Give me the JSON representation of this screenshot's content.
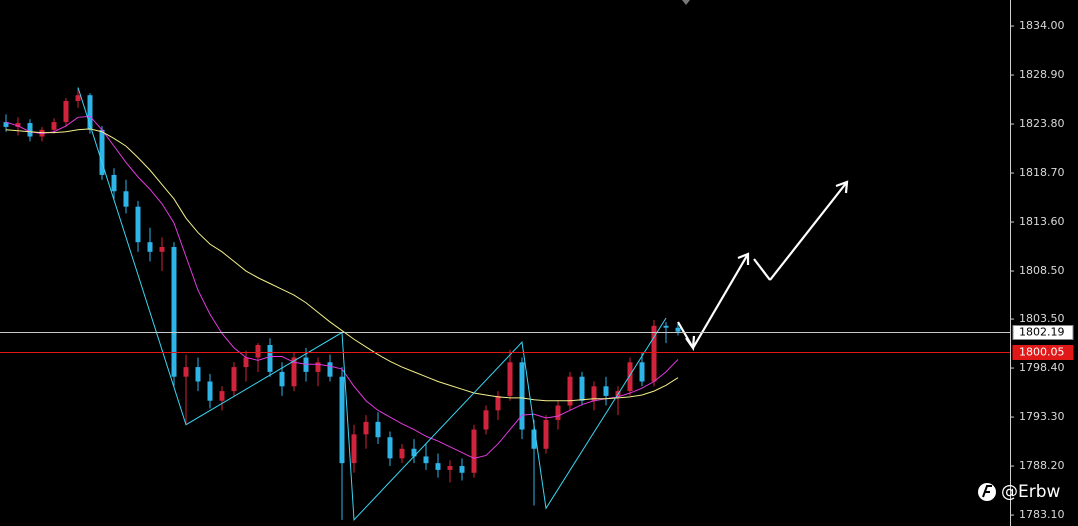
{
  "chart_data": {
    "type": "candlestick",
    "open": [
      1824.0,
      1823.5,
      1823.9,
      1822.5,
      1823.2,
      1824.0,
      1826.2,
      1826.8,
      1823.2,
      1818.5,
      1816.8,
      1815.2,
      1811.5,
      1810.5,
      1811.0,
      1797.5,
      1798.5,
      1797.0,
      1795.0,
      1796.0,
      1798.5,
      1799.5,
      1800.8,
      1798.0,
      1796.5,
      1799.5,
      1798.0,
      1799.0,
      1797.5,
      1788.5,
      1791.5,
      1792.8,
      1791.2,
      1789.0,
      1790.0,
      1789.2,
      1788.5,
      1787.8,
      1788.2,
      1787.5,
      1792.0,
      1794.0,
      1795.5,
      1799.0,
      1792.0,
      1790.0,
      1793.0,
      1794.5,
      1797.5,
      1795.0,
      1796.5,
      1795.5,
      1796.0,
      1799.0,
      1797.0,
      1802.8,
      1802.6
    ],
    "high": [
      1824.8,
      1824.5,
      1824.3,
      1823.5,
      1824.4,
      1826.5,
      1827.6,
      1827.0,
      1823.6,
      1819.2,
      1818.0,
      1815.8,
      1813.0,
      1812.0,
      1811.5,
      1799.8,
      1799.5,
      1797.8,
      1796.5,
      1799.0,
      1800.2,
      1801.0,
      1801.5,
      1799.0,
      1800.0,
      1800.5,
      1799.5,
      1799.8,
      1798.5,
      1792.5,
      1793.5,
      1793.8,
      1791.8,
      1790.5,
      1791.0,
      1790.5,
      1789.5,
      1788.8,
      1789.0,
      1792.5,
      1794.5,
      1796.0,
      1800.3,
      1799.5,
      1793.0,
      1793.5,
      1795.0,
      1798.0,
      1798.0,
      1797.0,
      1797.5,
      1796.5,
      1799.5,
      1800.0,
      1803.4,
      1803.2,
      1803.0
    ],
    "low": [
      1823.0,
      1822.6,
      1822.0,
      1822.0,
      1822.8,
      1823.5,
      1825.5,
      1822.8,
      1818.0,
      1816.0,
      1814.5,
      1810.5,
      1809.5,
      1808.5,
      1796.5,
      1792.5,
      1796.0,
      1794.2,
      1794.0,
      1795.5,
      1797.0,
      1798.0,
      1797.5,
      1795.5,
      1796.0,
      1797.0,
      1796.5,
      1797.0,
      1782.6,
      1787.5,
      1790.0,
      1790.5,
      1788.2,
      1788.5,
      1788.5,
      1787.8,
      1787.0,
      1786.5,
      1786.7,
      1787.0,
      1791.5,
      1793.0,
      1795.0,
      1791.0,
      1784.1,
      1789.5,
      1792.0,
      1794.0,
      1794.5,
      1794.0,
      1794.5,
      1793.5,
      1795.5,
      1796.5,
      1796.5,
      1801.0,
      1801.8
    ],
    "close": [
      1823.5,
      1823.9,
      1822.5,
      1823.2,
      1824.0,
      1826.2,
      1826.8,
      1823.2,
      1818.5,
      1816.8,
      1815.2,
      1811.5,
      1810.5,
      1811.0,
      1797.5,
      1798.5,
      1797.0,
      1795.0,
      1796.0,
      1798.5,
      1799.5,
      1800.8,
      1798.0,
      1796.5,
      1799.5,
      1798.0,
      1799.0,
      1797.5,
      1788.5,
      1791.5,
      1792.8,
      1791.2,
      1789.0,
      1790.0,
      1789.2,
      1788.5,
      1787.8,
      1788.2,
      1787.5,
      1792.0,
      1794.0,
      1795.5,
      1799.0,
      1792.0,
      1790.0,
      1793.0,
      1794.5,
      1797.5,
      1795.0,
      1796.5,
      1795.5,
      1796.0,
      1799.0,
      1797.0,
      1802.8,
      1802.6,
      1802.19
    ],
    "up_color": "#d0243c",
    "down_color": "#2fb4e8",
    "lines": [
      {
        "color": "#e23ae0",
        "values": [
          1824.0,
          1823.6,
          1823.0,
          1822.8,
          1823.0,
          1823.6,
          1824.5,
          1824.6,
          1823.2,
          1821.5,
          1819.8,
          1818.3,
          1817.0,
          1815.5,
          1813.5,
          1810.0,
          1806.5,
          1804.0,
          1802.0,
          1800.5,
          1799.5,
          1799.2,
          1799.6,
          1799.6,
          1799.0,
          1798.8,
          1798.8,
          1798.6,
          1798.3,
          1796.5,
          1795.0,
          1794.0,
          1793.3,
          1792.6,
          1792.0,
          1791.3,
          1790.8,
          1790.2,
          1789.6,
          1789.0,
          1789.3,
          1790.5,
          1792.0,
          1793.5,
          1793.6,
          1793.2,
          1793.4,
          1794.0,
          1794.6,
          1795.0,
          1795.2,
          1795.4,
          1795.8,
          1796.3,
          1797.0,
          1798.0,
          1799.3
        ]
      },
      {
        "color": "#f2ef8a",
        "values": [
          1823.2,
          1823.1,
          1823.0,
          1822.9,
          1822.9,
          1823.0,
          1823.2,
          1823.3,
          1823.0,
          1822.3,
          1821.5,
          1820.3,
          1819.0,
          1817.5,
          1816.0,
          1814.0,
          1812.5,
          1811.3,
          1810.5,
          1809.5,
          1808.5,
          1807.8,
          1807.2,
          1806.6,
          1806.0,
          1805.2,
          1804.2,
          1803.2,
          1802.3,
          1801.4,
          1800.6,
          1799.8,
          1799.1,
          1798.5,
          1798.0,
          1797.5,
          1797.0,
          1796.6,
          1796.2,
          1795.8,
          1795.6,
          1795.4,
          1795.3,
          1795.3,
          1795.1,
          1795.0,
          1795.0,
          1795.0,
          1795.1,
          1795.2,
          1795.2,
          1795.3,
          1795.4,
          1795.6,
          1796.0,
          1796.6,
          1797.4
        ]
      }
    ],
    "zigzag": {
      "color": "#3ad4f2",
      "x": [
        6,
        15,
        28,
        29,
        43,
        45,
        55
      ],
      "values": [
        1827.6,
        1792.5,
        1802.1,
        1782.6,
        1801.1,
        1783.8,
        1803.6
      ]
    },
    "price_lines": [
      {
        "value": 1802.19,
        "color": "#c8c8c8"
      },
      {
        "value": 1800.05,
        "color": "#e01818"
      }
    ],
    "ylim": [
      1781.96,
      1836.71
    ],
    "yticks": [
      {
        "value": 1834,
        "label": "1834.00"
      },
      {
        "value": 1828.9,
        "label": "1828.90"
      },
      {
        "value": 1823.8,
        "label": "1823.80"
      },
      {
        "value": 1818.7,
        "label": "1818.70"
      },
      {
        "value": 1813.6,
        "label": "1813.60"
      },
      {
        "value": 1808.5,
        "label": "1808.50"
      },
      {
        "value": 1803.5,
        "label": "1803.50"
      },
      {
        "value": 1798.4,
        "label": "1798.40"
      },
      {
        "value": 1793.3,
        "label": "1793.30"
      },
      {
        "value": 1788.2,
        "label": "1788.20"
      },
      {
        "value": 1783.1,
        "label": "1783.10"
      }
    ],
    "watermark": "@Erbw"
  }
}
